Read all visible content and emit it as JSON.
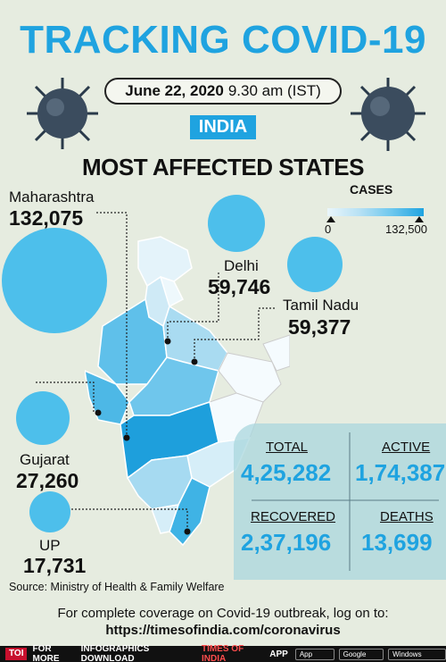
{
  "header": {
    "title": "TRACKING COVID-19",
    "date_bold": "June 22, 2020",
    "time": "9.30 am (IST)",
    "country": "INDIA",
    "subtitle": "MOST AFFECTED STATES"
  },
  "legend": {
    "title": "CASES",
    "min": "0",
    "max": "132,500"
  },
  "states": [
    {
      "name": "Maharashtra",
      "cases": "132,075"
    },
    {
      "name": "Delhi",
      "cases": "59,746"
    },
    {
      "name": "Tamil Nadu",
      "cases": "59,377"
    },
    {
      "name": "Gujarat",
      "cases": "27,260"
    },
    {
      "name": "UP",
      "cases": "17,731"
    }
  ],
  "stats": {
    "total_label": "TOTAL",
    "total": "4,25,282",
    "active_label": "ACTIVE",
    "active": "1,74,387",
    "recovered_label": "RECOVERED",
    "recovered": "2,37,196",
    "deaths_label": "DEATHS",
    "deaths": "13,699"
  },
  "source": "Source: Ministry of Health & Family Welfare",
  "footer": {
    "line1": "For complete coverage on Covid-19 outbreak, log on to:",
    "line2": "https://timesofindia.com/coronavirus"
  },
  "bottom_bar": {
    "logo": "TOI",
    "text1": "FOR MORE",
    "text2": "INFOGRAPHICS DOWNLOAD",
    "highlight": "TIMES OF INDIA",
    "text3": "APP",
    "app_store": "App Store",
    "google_play": "Google play",
    "windows": "Windows Phone"
  },
  "colors": {
    "accent": "#1fa3e0",
    "bubble": "#4dbfeb",
    "background": "#e6ece0"
  }
}
